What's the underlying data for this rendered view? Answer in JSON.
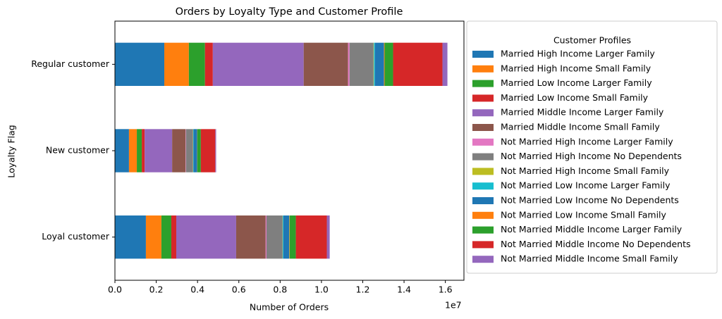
{
  "chart_data": {
    "type": "stacked-barh",
    "title": "Orders by Loyalty Type and Customer Profile",
    "x_label": "Number of Orders",
    "y_label": "Loyalty Flag",
    "x_offset_label": "1e7",
    "legend_title": "Customer Profiles",
    "legend_position": "outside-right",
    "categories": [
      "Loyal customer",
      "New customer",
      "Regular customer"
    ],
    "xlim": [
      0,
      16900000
    ],
    "xticks": [
      {
        "value": 0,
        "label": "0.0"
      },
      {
        "value": 2000000,
        "label": "0.2"
      },
      {
        "value": 4000000,
        "label": "0.4"
      },
      {
        "value": 6000000,
        "label": "0.6"
      },
      {
        "value": 8000000,
        "label": "0.8"
      },
      {
        "value": 10000000,
        "label": "1.0"
      },
      {
        "value": 12000000,
        "label": "1.2"
      },
      {
        "value": 14000000,
        "label": "1.4"
      },
      {
        "value": 16000000,
        "label": "1.6"
      }
    ],
    "series": [
      {
        "name": "Married High Income Larger Family",
        "color": "#1f77b4",
        "values": [
          1500000,
          680000,
          2390000
        ]
      },
      {
        "name": "Married High Income Small Family",
        "color": "#ff7f0e",
        "values": [
          750000,
          380000,
          1190000
        ]
      },
      {
        "name": "Married Low Income Larger Family",
        "color": "#2ca02c",
        "values": [
          480000,
          240000,
          780000
        ]
      },
      {
        "name": "Married Low Income Small Family",
        "color": "#d62728",
        "values": [
          240000,
          140000,
          380000
        ]
      },
      {
        "name": "Married Middle Income Larger Family",
        "color": "#9467bd",
        "values": [
          2900000,
          1330000,
          4400000
        ]
      },
      {
        "name": "Married Middle Income Small Family",
        "color": "#8c564b",
        "values": [
          1430000,
          650000,
          2150000
        ]
      },
      {
        "name": "Not Married High Income Larger Family",
        "color": "#e377c2",
        "values": [
          40000,
          20000,
          70000
        ]
      },
      {
        "name": "Not Married High Income No Dependents",
        "color": "#7f7f7f",
        "values": [
          780000,
          340000,
          1160000
        ]
      },
      {
        "name": "Not Married High Income Small Family",
        "color": "#bcbd22",
        "values": [
          10000,
          10000,
          20000
        ]
      },
      {
        "name": "Not Married Low Income Larger Family",
        "color": "#17becf",
        "values": [
          30000,
          20000,
          50000
        ]
      },
      {
        "name": "Not Married Low Income No Dependents",
        "color": "#1f77b4",
        "values": [
          280000,
          170000,
          440000
        ]
      },
      {
        "name": "Not Married Low Income Small Family",
        "color": "#ff7f0e",
        "values": [
          20000,
          10000,
          30000
        ]
      },
      {
        "name": "Not Married Middle Income Larger Family",
        "color": "#2ca02c",
        "values": [
          300000,
          170000,
          410000
        ]
      },
      {
        "name": "Not Married Middle Income No Dependents",
        "color": "#d62728",
        "values": [
          1500000,
          700000,
          2390000
        ]
      },
      {
        "name": "Not Married Middle Income Small Family",
        "color": "#9467bd",
        "values": [
          140000,
          40000,
          240000
        ]
      }
    ]
  }
}
